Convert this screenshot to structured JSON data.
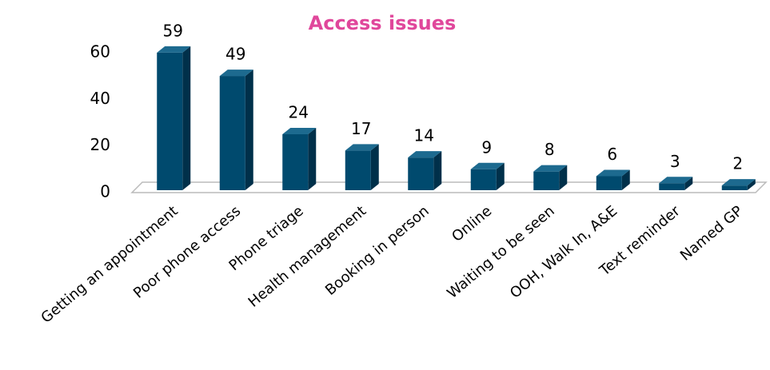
{
  "chart_data": {
    "type": "bar",
    "title": "Access issues",
    "categories": [
      "Getting an appointment",
      "Poor phone access",
      "Phone triage",
      "Health management",
      "Booking in person",
      "Online",
      "Waiting to be seen",
      "OOH, Walk In, A&E",
      "Text reminder",
      "Named GP"
    ],
    "values": [
      59,
      49,
      24,
      17,
      14,
      9,
      8,
      6,
      3,
      2
    ],
    "color": "#004a6e",
    "ylim": [
      0,
      60
    ],
    "yticks": [
      0,
      20,
      40,
      60
    ],
    "grid": false
  }
}
